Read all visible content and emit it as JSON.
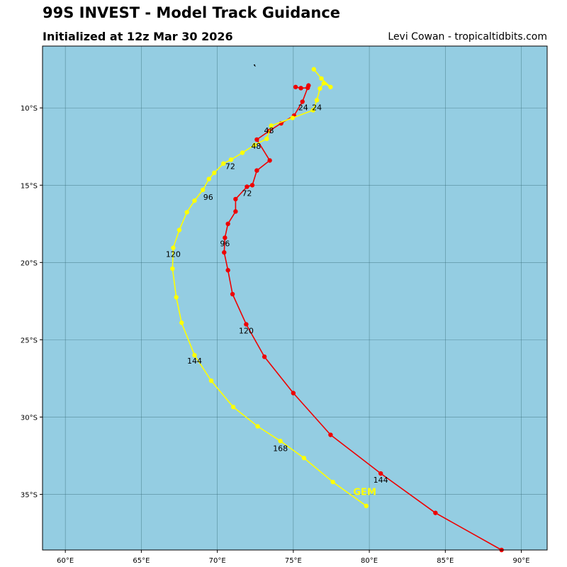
{
  "header": {
    "title": "99S INVEST - Model Track Guidance",
    "subtitle": "Initialized at 12z Mar 30 2026",
    "credit": "Levi Cowan - tropicaltidbits.com"
  },
  "colors": {
    "ocean": "#94cde2",
    "grid": "#3a6f7c",
    "model_a": "#ee0000",
    "model_b": "#ffff00"
  },
  "chart_data": {
    "type": "map-track",
    "extent": {
      "lon": [
        58.5,
        91.7
      ],
      "lat_top": -6.0,
      "lat_bottom": -38.6
    },
    "lon_ticks": [
      {
        "value": 60,
        "label": "60°E"
      },
      {
        "value": 65,
        "label": "65°E"
      },
      {
        "value": 70,
        "label": "70°E"
      },
      {
        "value": 75,
        "label": "75°E"
      },
      {
        "value": 80,
        "label": "80°E"
      },
      {
        "value": 85,
        "label": "85°E"
      },
      {
        "value": 90,
        "label": "90°E"
      }
    ],
    "lat_ticks": [
      {
        "value": -10,
        "label": "10°S"
      },
      {
        "value": -15,
        "label": "15°S"
      },
      {
        "value": -20,
        "label": "20°S"
      },
      {
        "value": -25,
        "label": "25°S"
      },
      {
        "value": -30,
        "label": "30°S"
      },
      {
        "value": -35,
        "label": "35°S"
      }
    ],
    "land": [
      {
        "name": "island",
        "lon": 72.45,
        "lat": -7.25
      }
    ],
    "tracks": [
      {
        "name": "red-track",
        "color": "#ee0000",
        "points": [
          {
            "lon": 75.15,
            "lat": -8.65
          },
          {
            "lon": 75.5,
            "lat": -8.72
          },
          {
            "lon": 75.95,
            "lat": -8.7
          },
          {
            "lon": 76.0,
            "lat": -8.55
          },
          {
            "lon": 75.6,
            "lat": -9.6
          },
          {
            "lon": 75.05,
            "lat": -10.5
          },
          {
            "lon": 74.2,
            "lat": -11.0
          },
          {
            "lon": 73.4,
            "lat": -11.5
          },
          {
            "lon": 72.6,
            "lat": -12.05
          },
          {
            "lon": 73.45,
            "lat": -13.4
          },
          {
            "lon": 72.6,
            "lat": -14.05
          },
          {
            "lon": 72.3,
            "lat": -15.0
          },
          {
            "lon": 71.95,
            "lat": -15.1
          },
          {
            "lon": 71.2,
            "lat": -15.9
          },
          {
            "lon": 71.2,
            "lat": -16.7
          },
          {
            "lon": 70.7,
            "lat": -17.5
          },
          {
            "lon": 70.5,
            "lat": -18.4
          },
          {
            "lon": 70.45,
            "lat": -19.35
          },
          {
            "lon": 70.7,
            "lat": -20.5
          },
          {
            "lon": 71.0,
            "lat": -22.05
          },
          {
            "lon": 71.9,
            "lat": -24.0
          },
          {
            "lon": 73.1,
            "lat": -26.1
          },
          {
            "lon": 75.0,
            "lat": -28.45
          },
          {
            "lon": 77.45,
            "lat": -31.15
          },
          {
            "lon": 80.75,
            "lat": -33.65
          },
          {
            "lon": 84.35,
            "lat": -36.2
          },
          {
            "lon": 88.7,
            "lat": -38.6
          }
        ],
        "labels": [
          {
            "text": "24",
            "lon": 75.65,
            "lat": -10.15
          },
          {
            "text": "48",
            "lon": 73.4,
            "lat": -11.65
          },
          {
            "text": "72",
            "lon": 71.95,
            "lat": -15.7
          },
          {
            "text": "96",
            "lon": 70.5,
            "lat": -18.95
          },
          {
            "text": "120",
            "lon": 71.9,
            "lat": -24.6
          },
          {
            "text": "144",
            "lon": 80.75,
            "lat": -34.25
          }
        ]
      },
      {
        "name": "yellow-track",
        "color": "#ffff00",
        "model_label": {
          "text": "GEM",
          "lon": 79.7,
          "lat": -35.05
        },
        "points": [
          {
            "lon": 76.35,
            "lat": -7.5
          },
          {
            "lon": 76.85,
            "lat": -8.1
          },
          {
            "lon": 77.45,
            "lat": -8.65
          },
          {
            "lon": 77.0,
            "lat": -8.4
          },
          {
            "lon": 76.75,
            "lat": -8.75
          },
          {
            "lon": 76.55,
            "lat": -9.5
          },
          {
            "lon": 76.3,
            "lat": -10.15
          },
          {
            "lon": 74.95,
            "lat": -10.65
          },
          {
            "lon": 73.55,
            "lat": -11.15
          },
          {
            "lon": 73.25,
            "lat": -12.0
          },
          {
            "lon": 72.45,
            "lat": -12.4
          },
          {
            "lon": 71.65,
            "lat": -12.9
          },
          {
            "lon": 70.9,
            "lat": -13.35
          },
          {
            "lon": 70.4,
            "lat": -13.6
          },
          {
            "lon": 69.8,
            "lat": -14.2
          },
          {
            "lon": 69.45,
            "lat": -14.6
          },
          {
            "lon": 69.05,
            "lat": -15.3
          },
          {
            "lon": 68.5,
            "lat": -16.0
          },
          {
            "lon": 68.0,
            "lat": -16.75
          },
          {
            "lon": 67.5,
            "lat": -17.9
          },
          {
            "lon": 67.1,
            "lat": -19.05
          },
          {
            "lon": 67.05,
            "lat": -20.4
          },
          {
            "lon": 67.3,
            "lat": -22.25
          },
          {
            "lon": 67.65,
            "lat": -23.9
          },
          {
            "lon": 68.5,
            "lat": -26.0
          },
          {
            "lon": 69.6,
            "lat": -27.65
          },
          {
            "lon": 71.05,
            "lat": -29.35
          },
          {
            "lon": 72.65,
            "lat": -30.6
          },
          {
            "lon": 74.15,
            "lat": -31.55
          },
          {
            "lon": 75.7,
            "lat": -32.65
          },
          {
            "lon": 77.6,
            "lat": -34.2
          },
          {
            "lon": 79.8,
            "lat": -35.75
          }
        ],
        "labels": [
          {
            "text": "24",
            "lon": 76.55,
            "lat": -10.15
          },
          {
            "text": "48",
            "lon": 72.55,
            "lat": -12.65
          },
          {
            "text": "72",
            "lon": 70.85,
            "lat": -13.95
          },
          {
            "text": "96",
            "lon": 69.4,
            "lat": -15.95
          },
          {
            "text": "120",
            "lon": 67.1,
            "lat": -19.65
          },
          {
            "text": "144",
            "lon": 68.5,
            "lat": -26.55
          },
          {
            "text": "168",
            "lon": 74.15,
            "lat": -32.2
          }
        ]
      }
    ]
  }
}
